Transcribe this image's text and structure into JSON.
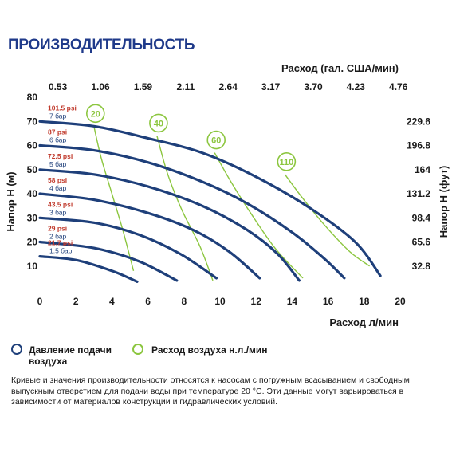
{
  "title": "ПРОИЗВОДИТЕЛЬНОСТЬ",
  "chart_data": {
    "type": "line",
    "top_axis_title": "Расход (гал. США/мин)",
    "top_ticks": [
      "0.53",
      "1.06",
      "1.59",
      "2.11",
      "2.64",
      "3.17",
      "3.70",
      "4.23",
      "4.76"
    ],
    "xlabel": "Расход л/мин",
    "xlim": [
      0,
      20
    ],
    "x_ticks": [
      "0",
      "2",
      "4",
      "6",
      "8",
      "10",
      "12",
      "14",
      "16",
      "18",
      "20"
    ],
    "ylabel_left": "Напор H (м)",
    "ylim": [
      0,
      80
    ],
    "y_ticks": [
      "10",
      "20",
      "30",
      "40",
      "50",
      "60",
      "70",
      "80"
    ],
    "ylabel_right": "Напор H (фут)",
    "right_ticks": [
      {
        "label": "229.6",
        "value": 70
      },
      {
        "label": "196.8",
        "value": 60
      },
      {
        "label": "164",
        "value": 50
      },
      {
        "label": "131.2",
        "value": 40
      },
      {
        "label": "98.4",
        "value": 30
      },
      {
        "label": "65.6",
        "value": 20
      },
      {
        "label": "32.8",
        "value": 10
      }
    ],
    "pressure_series": [
      {
        "psi": "101.5 psi",
        "bar": "7 бар",
        "points": [
          [
            0,
            70
          ],
          [
            3,
            68
          ],
          [
            6,
            63
          ],
          [
            9,
            57
          ],
          [
            12,
            47
          ],
          [
            15,
            34
          ],
          [
            17.5,
            20
          ],
          [
            18.9,
            6
          ]
        ]
      },
      {
        "psi": "87 psi",
        "bar": "6 бар",
        "points": [
          [
            0,
            60
          ],
          [
            3,
            58
          ],
          [
            6,
            53
          ],
          [
            9,
            45
          ],
          [
            11.5,
            36
          ],
          [
            14,
            24
          ],
          [
            15.8,
            13
          ],
          [
            16.9,
            5
          ]
        ]
      },
      {
        "psi": "72.5 psi",
        "bar": "5 бар",
        "points": [
          [
            0,
            50
          ],
          [
            3,
            48
          ],
          [
            6,
            43
          ],
          [
            9,
            35
          ],
          [
            11.5,
            25
          ],
          [
            13.2,
            15
          ],
          [
            14.4,
            4
          ]
        ]
      },
      {
        "psi": "58 psi",
        "bar": "4 бар",
        "points": [
          [
            0,
            40
          ],
          [
            3,
            37.5
          ],
          [
            6,
            32
          ],
          [
            8.5,
            25
          ],
          [
            10.5,
            16
          ],
          [
            12.2,
            5
          ]
        ]
      },
      {
        "psi": "43.5 psi",
        "bar": "3 бар",
        "points": [
          [
            0,
            30
          ],
          [
            3,
            28
          ],
          [
            5.5,
            23
          ],
          [
            7.8,
            15
          ],
          [
            9.8,
            5
          ]
        ]
      },
      {
        "psi": "29 psi",
        "bar": "2 бар",
        "points": [
          [
            0,
            20
          ],
          [
            3,
            17.5
          ],
          [
            5.5,
            12
          ],
          [
            7.6,
            4
          ]
        ]
      },
      {
        "psi": "21.7 psi",
        "bar": "1.5 бар",
        "points": [
          [
            0,
            14
          ],
          [
            2,
            12.5
          ],
          [
            4,
            8
          ],
          [
            5.4,
            3.5
          ]
        ]
      }
    ],
    "air_series": [
      {
        "label": "20",
        "points": [
          [
            3.0,
            68
          ],
          [
            3.4,
            55
          ],
          [
            4.0,
            40
          ],
          [
            4.6,
            25
          ],
          [
            5.2,
            8
          ]
        ]
      },
      {
        "label": "40",
        "points": [
          [
            6.5,
            64
          ],
          [
            7.1,
            48
          ],
          [
            7.9,
            33
          ],
          [
            8.9,
            18
          ],
          [
            9.6,
            4
          ]
        ]
      },
      {
        "label": "60",
        "points": [
          [
            9.7,
            57
          ],
          [
            10.6,
            45
          ],
          [
            11.7,
            32
          ],
          [
            13.1,
            17
          ],
          [
            14.6,
            5
          ]
        ]
      },
      {
        "label": "110",
        "points": [
          [
            13.6,
            48
          ],
          [
            14.6,
            38
          ],
          [
            15.8,
            27
          ],
          [
            17.2,
            16
          ],
          [
            18.3,
            10
          ]
        ]
      }
    ],
    "colors": {
      "pressure": "#1e3f7a",
      "air": "#8cc63f",
      "psi": "#c0392b",
      "bar": "#1e3f7a"
    }
  },
  "legend": {
    "pressure": "Давление подачи воздуха",
    "air": "Расход воздуха н.л./мин"
  },
  "footnote": "Кривые и значения производительности относятся к насосам с погружным всасыванием и свободным выпускным отверстием для подачи воды при температуре 20 °C. Эти данные могут варьироваться в зависимости от материалов конструкции и гидравлических условий."
}
